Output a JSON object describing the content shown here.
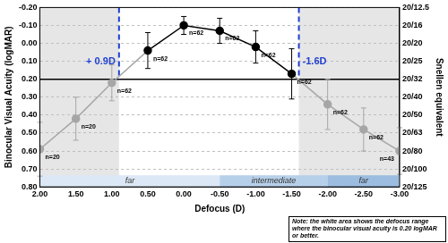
{
  "chart_data": {
    "type": "line",
    "x_label": "Defocus (D)",
    "y_label": "Binocular Visual Acuity (logMAR)",
    "y2_label": "Snellen equivalent",
    "x": [
      2.0,
      1.5,
      1.0,
      0.5,
      0.0,
      -0.5,
      -1.0,
      -1.5,
      -2.0,
      -2.5,
      -3.0
    ],
    "series": [
      {
        "values": [
          0.59,
          0.42,
          0.22,
          0.04,
          -0.1,
          -0.07,
          0.02,
          0.17,
          0.34,
          0.48,
          0.6
        ],
        "errors": [
          0.15,
          0.12,
          0.1,
          0.1,
          0.05,
          0.07,
          0.09,
          0.14,
          0.14,
          0.12,
          0.13
        ],
        "n_labels": [
          "n=20",
          "n=20",
          "n=62",
          "n=62",
          "n=62",
          "n=62",
          "n=62",
          "n=62",
          "n=62",
          "n=62",
          "n=43"
        ],
        "colors": [
          "#a6a6a6",
          "#a6a6a6",
          "#a6a6a6",
          "#000000",
          "#000000",
          "#000000",
          "#000000",
          "#000000",
          "#a6a6a6",
          "#a6a6a6",
          "#a6a6a6"
        ],
        "marker": "circle",
        "line_style": "solid"
      }
    ],
    "xlim": [
      2.0,
      -3.0
    ],
    "xticks": [
      {
        "value": 2.0,
        "label": "2.00"
      },
      {
        "value": 1.5,
        "label": "1.50"
      },
      {
        "value": 1.0,
        "label": "1.00"
      },
      {
        "value": 0.5,
        "label": "0.50"
      },
      {
        "value": 0.0,
        "label": "0.00"
      },
      {
        "value": -0.5,
        "label": "-0.50"
      },
      {
        "value": -1.0,
        "label": "-1.00"
      },
      {
        "value": -1.5,
        "label": "-1.50"
      },
      {
        "value": -2.0,
        "label": "-2.00"
      },
      {
        "value": -2.5,
        "label": "-2.50"
      },
      {
        "value": -3.0,
        "label": "-3.00"
      }
    ],
    "ylim": [
      0.8,
      -0.2
    ],
    "yticks": [
      {
        "value": -0.2,
        "label": "-0.20"
      },
      {
        "value": -0.1,
        "label": "-0.10"
      },
      {
        "value": 0.0,
        "label": "0.00"
      },
      {
        "value": 0.1,
        "label": "0.10"
      },
      {
        "value": 0.2,
        "label": "0.20"
      },
      {
        "value": 0.3,
        "label": "0.30"
      },
      {
        "value": 0.4,
        "label": "0.40"
      },
      {
        "value": 0.5,
        "label": "0.50"
      },
      {
        "value": 0.6,
        "label": "0.60"
      },
      {
        "value": 0.7,
        "label": "0.70"
      },
      {
        "value": 0.8,
        "label": "0.80"
      }
    ],
    "y2lim": [
      0.8,
      -0.2
    ],
    "y2ticks": [
      {
        "value": -0.2,
        "label": "20/12.5"
      },
      {
        "value": -0.1,
        "label": "20/16"
      },
      {
        "value": 0.0,
        "label": "20/20"
      },
      {
        "value": 0.1,
        "label": "20/25"
      },
      {
        "value": 0.2,
        "label": "20/32"
      },
      {
        "value": 0.3,
        "label": "20/40"
      },
      {
        "value": 0.4,
        "label": "20/50"
      },
      {
        "value": 0.5,
        "label": "20/63"
      },
      {
        "value": 0.6,
        "label": "20/80"
      },
      {
        "value": 0.7,
        "label": "20/100"
      },
      {
        "value": 0.8,
        "label": "20/125"
      }
    ],
    "grid": true,
    "reference_lines": [
      {
        "x": 0.9,
        "label": "+ 0.9D",
        "color": "#1f3fd1"
      },
      {
        "x": -1.6,
        "label": "-1.6D",
        "color": "#1f3fd1"
      }
    ],
    "threshold": 0.2,
    "ranges": [
      {
        "label": "far",
        "from": 2.0,
        "to": -0.5,
        "color": "#dce8f5"
      },
      {
        "label": "intermediate",
        "from": -0.5,
        "to": -2.0,
        "color": "#b7d0ea"
      },
      {
        "label": "far",
        "from": -2.0,
        "to": -3.0,
        "color": "#9cbde0"
      }
    ],
    "note": "Note: the white area shows the defocus range where the binocular visual acuity is 0.20 logMAR or better."
  }
}
